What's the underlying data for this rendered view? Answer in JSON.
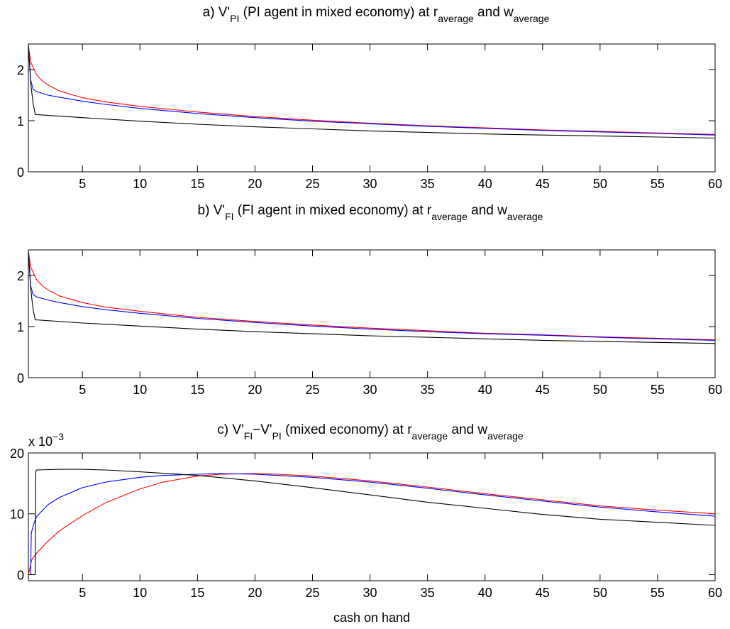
{
  "figure": {
    "xlabel": "cash on hand"
  },
  "chart_data": [
    {
      "type": "line",
      "panel": "a",
      "title_parts": {
        "prefix": "a)  V'",
        "sub1": "PI",
        "mid1": " (PI agent in mixed economy) at r",
        "sub2": "average",
        "mid2": " and w",
        "sub3": "average"
      },
      "xlim": [
        0.3,
        60
      ],
      "ylim": [
        0,
        2.5
      ],
      "xticks": [
        5,
        10,
        15,
        20,
        25,
        30,
        35,
        40,
        45,
        50,
        55,
        60
      ],
      "yticks": [
        0,
        1,
        2
      ],
      "series": [
        {
          "color": "#ff0000",
          "x": [
            0.3,
            0.5,
            1,
            1.5,
            2,
            3,
            5,
            7,
            10,
            15,
            20,
            25,
            30,
            35,
            40,
            45,
            50,
            55,
            60
          ],
          "y": [
            2.48,
            2.15,
            1.9,
            1.78,
            1.7,
            1.58,
            1.45,
            1.37,
            1.28,
            1.17,
            1.08,
            1.01,
            0.95,
            0.9,
            0.86,
            0.82,
            0.79,
            0.76,
            0.73
          ]
        },
        {
          "color": "#0000ff",
          "x": [
            0.3,
            0.5,
            0.7,
            1,
            2,
            3,
            5,
            7,
            10,
            15,
            20,
            25,
            30,
            35,
            40,
            45,
            50,
            55,
            60
          ],
          "y": [
            2.48,
            1.8,
            1.62,
            1.57,
            1.5,
            1.46,
            1.38,
            1.32,
            1.24,
            1.14,
            1.06,
            0.99,
            0.94,
            0.89,
            0.85,
            0.81,
            0.78,
            0.75,
            0.72
          ]
        },
        {
          "color": "#000000",
          "x": [
            0.3,
            0.5,
            0.7,
            0.9,
            1,
            5,
            10,
            15,
            20,
            25,
            30,
            35,
            40,
            45,
            50,
            55,
            60
          ],
          "y": [
            2.48,
            1.75,
            1.35,
            1.12,
            1.12,
            1.06,
            0.99,
            0.93,
            0.88,
            0.84,
            0.8,
            0.77,
            0.74,
            0.72,
            0.7,
            0.68,
            0.66
          ]
        }
      ]
    },
    {
      "type": "line",
      "panel": "b",
      "title_parts": {
        "prefix": "b)  V'",
        "sub1": "FI",
        "mid1": " (FI agent in mixed economy) at r",
        "sub2": "average",
        "mid2": " and w",
        "sub3": "average"
      },
      "xlim": [
        0.3,
        60
      ],
      "ylim": [
        0,
        2.5
      ],
      "xticks": [
        5,
        10,
        15,
        20,
        25,
        30,
        35,
        40,
        45,
        50,
        55,
        60
      ],
      "yticks": [
        0,
        1,
        2
      ],
      "series": [
        {
          "color": "#ff0000",
          "x": [
            0.3,
            0.5,
            1,
            1.5,
            2,
            3,
            5,
            7,
            10,
            15,
            20,
            25,
            30,
            35,
            40,
            45,
            50,
            55,
            60
          ],
          "y": [
            2.48,
            2.17,
            1.92,
            1.8,
            1.72,
            1.6,
            1.47,
            1.38,
            1.3,
            1.18,
            1.1,
            1.03,
            0.97,
            0.92,
            0.87,
            0.84,
            0.8,
            0.77,
            0.74
          ]
        },
        {
          "color": "#0000ff",
          "x": [
            0.3,
            0.5,
            0.7,
            1,
            2,
            3,
            5,
            7,
            10,
            15,
            20,
            25,
            30,
            35,
            40,
            45,
            50,
            55,
            60
          ],
          "y": [
            2.48,
            1.8,
            1.63,
            1.58,
            1.52,
            1.47,
            1.39,
            1.33,
            1.26,
            1.16,
            1.08,
            1.01,
            0.95,
            0.9,
            0.86,
            0.83,
            0.79,
            0.76,
            0.73
          ]
        },
        {
          "color": "#000000",
          "x": [
            0.3,
            0.5,
            0.7,
            0.9,
            1,
            5,
            10,
            15,
            20,
            25,
            30,
            35,
            40,
            45,
            50,
            55,
            60
          ],
          "y": [
            2.48,
            1.75,
            1.35,
            1.13,
            1.13,
            1.07,
            1.01,
            0.95,
            0.9,
            0.86,
            0.82,
            0.79,
            0.76,
            0.73,
            0.71,
            0.69,
            0.67
          ]
        }
      ]
    },
    {
      "type": "line",
      "panel": "c",
      "title_parts": {
        "prefix": "c)  V'",
        "sub1": "FI",
        "mid1": "−V'",
        "sub2": "PI",
        "mid2": " (mixed economy) at r",
        "sub3": "average",
        "mid3": " and w",
        "sub4": "average"
      },
      "exponent_label": {
        "base": "x 10",
        "power": "−3"
      },
      "xlim": [
        0.3,
        60
      ],
      "ylim": [
        -0.001,
        0.02
      ],
      "xticks": [
        5,
        10,
        15,
        20,
        25,
        30,
        35,
        40,
        45,
        50,
        55,
        60
      ],
      "yticks": [
        0,
        10,
        20
      ],
      "ytick_values": [
        0,
        0.01,
        0.02
      ],
      "series": [
        {
          "color": "#ff0000",
          "x": [
            0.3,
            0.6,
            1,
            2,
            3,
            5,
            7,
            10,
            12,
            15,
            17,
            20,
            22,
            25,
            30,
            35,
            40,
            45,
            50,
            55,
            60
          ],
          "y": [
            0.0,
            0.0025,
            0.0035,
            0.0055,
            0.0072,
            0.0097,
            0.0118,
            0.0141,
            0.0152,
            0.0162,
            0.0165,
            0.0166,
            0.0165,
            0.0162,
            0.0154,
            0.0144,
            0.0133,
            0.0123,
            0.0113,
            0.0106,
            0.01
          ]
        },
        {
          "color": "#0000ff",
          "x": [
            0.3,
            0.5,
            0.55,
            0.6,
            0.8,
            1,
            2,
            3,
            5,
            7,
            10,
            12,
            15,
            17,
            20,
            25,
            30,
            35,
            40,
            45,
            50,
            55,
            60
          ],
          "y": [
            0.0,
            0.0,
            0.0068,
            0.0072,
            0.0085,
            0.0095,
            0.0115,
            0.0127,
            0.0143,
            0.0152,
            0.016,
            0.0163,
            0.0165,
            0.0166,
            0.0165,
            0.016,
            0.0152,
            0.0142,
            0.0131,
            0.0121,
            0.0111,
            0.0103,
            0.0096
          ]
        },
        {
          "color": "#000000",
          "x": [
            0.3,
            0.9,
            0.95,
            1,
            3,
            5,
            7,
            10,
            15,
            20,
            25,
            30,
            35,
            40,
            45,
            50,
            55,
            60
          ],
          "y": [
            0.0,
            0.0,
            0.0169,
            0.0172,
            0.0173,
            0.0173,
            0.0172,
            0.0169,
            0.0163,
            0.0154,
            0.0143,
            0.0131,
            0.0119,
            0.0109,
            0.0099,
            0.0091,
            0.0086,
            0.0081
          ]
        }
      ]
    }
  ]
}
